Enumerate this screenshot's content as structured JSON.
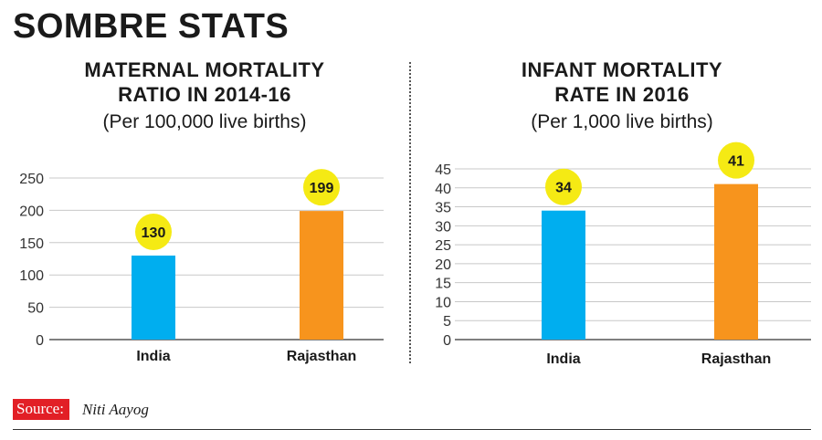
{
  "title": "SOMBRE STATS",
  "colors": {
    "india": "#00aeef",
    "rajasthan": "#f7941d",
    "badge": "#f5ea14",
    "grid": "#c8c8c8",
    "source_bg": "#e21f26"
  },
  "source": {
    "label": "Source:",
    "value": "Niti Aayog"
  },
  "chart_data": [
    {
      "type": "bar",
      "title_line1": "MATERNAL MORTALITY",
      "title_line2": "RATIO IN 2014-16",
      "subtitle": "(Per 100,000 live births)",
      "categories": [
        "India",
        "Rajasthan"
      ],
      "values": [
        130,
        199
      ],
      "value_labels": [
        "130",
        "199"
      ],
      "ylim": [
        0,
        250
      ],
      "yticks": [
        0,
        50,
        100,
        150,
        200,
        250
      ],
      "ytick_labels": [
        "0",
        "50",
        "100",
        "150",
        "200",
        "250"
      ]
    },
    {
      "type": "bar",
      "title_line1": "INFANT MORTALITY",
      "title_line2": "RATE IN 2016",
      "subtitle": "(Per 1,000 live births)",
      "categories": [
        "India",
        "Rajasthan"
      ],
      "values": [
        34,
        41
      ],
      "value_labels": [
        "34",
        "41"
      ],
      "ylim": [
        0,
        45
      ],
      "yticks": [
        0,
        5,
        10,
        15,
        20,
        25,
        30,
        35,
        40,
        45
      ],
      "ytick_labels": [
        "0",
        "5",
        "10",
        "15",
        "20",
        "25",
        "30",
        "35",
        "40",
        "45"
      ]
    }
  ]
}
